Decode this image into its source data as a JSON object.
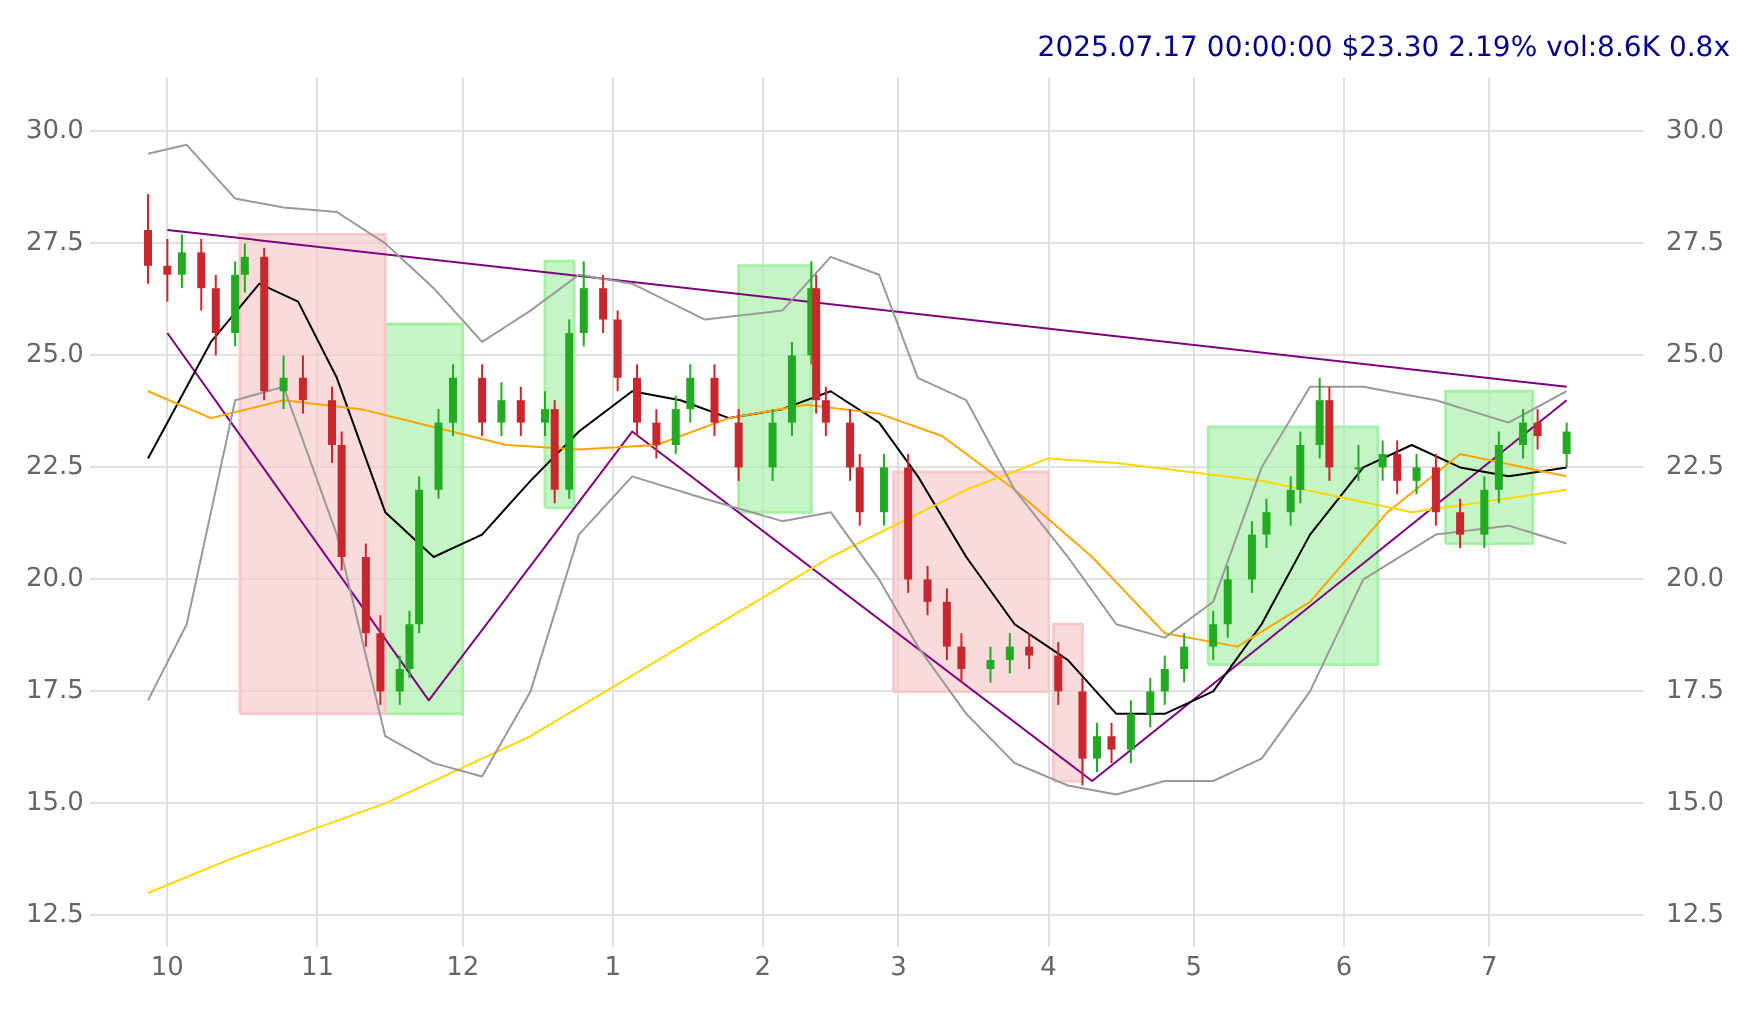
{
  "chart_data": {
    "type": "candlestick",
    "title": "2025.07.17 00:00:00 $23.30 2.19% vol:8.6K 0.8x",
    "x": [
      "2024-09-27",
      "2024-10-01",
      "2024-10-04",
      "2024-10-08",
      "2024-10-11",
      "2024-10-15",
      "2024-10-17",
      "2024-10-21",
      "2024-10-25",
      "2024-10-29",
      "2024-11-04",
      "2024-11-06",
      "2024-11-11",
      "2024-11-14",
      "2024-11-18",
      "2024-11-20",
      "2024-11-22",
      "2024-11-26",
      "2024-11-29",
      "2024-12-05",
      "2024-12-09",
      "2024-12-13",
      "2024-12-18",
      "2024-12-20",
      "2024-12-23",
      "2024-12-26",
      "2024-12-30",
      "2025-01-02",
      "2025-01-06",
      "2025-01-10",
      "2025-01-14",
      "2025-01-17",
      "2025-01-22",
      "2025-01-27",
      "2025-02-03",
      "2025-02-07",
      "2025-02-11",
      "2025-02-12",
      "2025-02-14",
      "2025-02-19",
      "2025-02-21",
      "2025-02-26",
      "2025-03-03",
      "2025-03-07",
      "2025-03-11",
      "2025-03-14",
      "2025-03-20",
      "2025-03-24",
      "2025-03-28",
      "2025-04-03",
      "2025-04-08",
      "2025-04-11",
      "2025-04-14",
      "2025-04-18",
      "2025-04-22",
      "2025-04-25",
      "2025-04-29",
      "2025-05-05",
      "2025-05-08",
      "2025-05-13",
      "2025-05-16",
      "2025-05-21",
      "2025-05-23",
      "2025-05-27",
      "2025-05-29",
      "2025-06-04",
      "2025-06-09",
      "2025-06-12",
      "2025-06-16",
      "2025-06-20",
      "2025-06-25",
      "2025-06-30",
      "2025-07-03",
      "2025-07-08",
      "2025-07-11",
      "2025-07-17"
    ],
    "ohlc": [
      [
        27.8,
        28.6,
        26.6,
        27.0
      ],
      [
        27.0,
        27.6,
        26.2,
        26.8
      ],
      [
        26.8,
        27.7,
        26.5,
        27.3
      ],
      [
        27.3,
        27.6,
        26.0,
        26.5
      ],
      [
        26.5,
        26.8,
        25.0,
        25.5
      ],
      [
        25.5,
        27.1,
        25.2,
        26.8
      ],
      [
        26.8,
        27.5,
        26.4,
        27.2
      ],
      [
        27.2,
        27.4,
        24.0,
        24.2
      ],
      [
        24.2,
        25.0,
        23.8,
        24.5
      ],
      [
        24.5,
        25.0,
        23.7,
        24.0
      ],
      [
        24.0,
        24.3,
        22.6,
        23.0
      ],
      [
        23.0,
        23.3,
        20.2,
        20.5
      ],
      [
        20.5,
        20.8,
        18.5,
        18.8
      ],
      [
        18.8,
        19.2,
        17.2,
        17.5
      ],
      [
        17.5,
        18.3,
        17.2,
        18.0
      ],
      [
        18.0,
        19.3,
        17.8,
        19.0
      ],
      [
        19.0,
        22.3,
        18.8,
        22.0
      ],
      [
        22.0,
        23.8,
        21.8,
        23.5
      ],
      [
        23.5,
        24.8,
        23.2,
        24.5
      ],
      [
        24.5,
        24.8,
        23.2,
        23.5
      ],
      [
        23.5,
        24.4,
        23.2,
        24.0
      ],
      [
        24.0,
        24.3,
        23.2,
        23.5
      ],
      [
        23.5,
        24.2,
        23.2,
        23.8
      ],
      [
        23.8,
        24.0,
        21.7,
        22.0
      ],
      [
        22.0,
        25.8,
        21.8,
        25.5
      ],
      [
        25.5,
        27.1,
        25.2,
        26.5
      ],
      [
        26.5,
        26.8,
        25.5,
        25.8
      ],
      [
        25.8,
        26.0,
        24.2,
        24.5
      ],
      [
        24.5,
        24.8,
        23.2,
        23.5
      ],
      [
        23.5,
        23.8,
        22.7,
        23.0
      ],
      [
        23.0,
        24.1,
        22.8,
        23.8
      ],
      [
        23.8,
        24.8,
        23.5,
        24.5
      ],
      [
        24.5,
        24.8,
        23.2,
        23.5
      ],
      [
        23.5,
        23.8,
        22.2,
        22.5
      ],
      [
        22.5,
        23.8,
        22.2,
        23.5
      ],
      [
        23.5,
        25.3,
        23.2,
        25.0
      ],
      [
        25.0,
        27.1,
        24.8,
        26.5
      ],
      [
        26.5,
        26.8,
        23.7,
        24.0
      ],
      [
        24.0,
        24.3,
        23.2,
        23.5
      ],
      [
        23.5,
        23.8,
        22.2,
        22.5
      ],
      [
        22.5,
        22.8,
        21.2,
        21.5
      ],
      [
        21.5,
        22.8,
        21.2,
        22.5
      ],
      [
        22.5,
        22.8,
        19.7,
        20.0
      ],
      [
        20.0,
        20.3,
        19.2,
        19.5
      ],
      [
        19.5,
        19.8,
        18.2,
        18.5
      ],
      [
        18.5,
        18.8,
        17.7,
        18.0
      ],
      [
        18.0,
        18.5,
        17.7,
        18.2
      ],
      [
        18.2,
        18.8,
        17.9,
        18.5
      ],
      [
        18.5,
        18.8,
        18.0,
        18.3
      ],
      [
        18.3,
        18.6,
        17.2,
        17.5
      ],
      [
        17.5,
        17.8,
        15.4,
        16.0
      ],
      [
        16.0,
        16.8,
        15.7,
        16.5
      ],
      [
        16.5,
        16.8,
        15.9,
        16.2
      ],
      [
        16.2,
        17.3,
        15.9,
        17.0
      ],
      [
        17.0,
        17.8,
        16.7,
        17.5
      ],
      [
        17.5,
        18.3,
        17.2,
        18.0
      ],
      [
        18.0,
        18.8,
        17.7,
        18.5
      ],
      [
        18.5,
        19.3,
        18.2,
        19.0
      ],
      [
        19.0,
        20.3,
        18.7,
        20.0
      ],
      [
        20.0,
        21.3,
        19.7,
        21.0
      ],
      [
        21.0,
        21.8,
        20.7,
        21.5
      ],
      [
        21.5,
        22.3,
        21.2,
        22.0
      ],
      [
        22.0,
        23.3,
        21.7,
        23.0
      ],
      [
        23.0,
        24.5,
        22.7,
        24.0
      ],
      [
        24.0,
        24.3,
        22.2,
        22.5
      ],
      [
        22.5,
        23.0,
        22.2,
        22.5
      ],
      [
        22.5,
        23.1,
        22.2,
        22.8
      ],
      [
        22.8,
        23.1,
        21.9,
        22.2
      ],
      [
        22.2,
        22.8,
        21.9,
        22.5
      ],
      [
        22.5,
        22.8,
        21.2,
        21.5
      ],
      [
        21.5,
        21.8,
        20.7,
        21.0
      ],
      [
        21.0,
        22.3,
        20.7,
        22.0
      ],
      [
        22.0,
        23.3,
        21.7,
        23.0
      ],
      [
        23.0,
        23.8,
        22.7,
        23.5
      ],
      [
        23.5,
        23.8,
        22.9,
        23.2
      ],
      [
        22.8,
        23.5,
        22.5,
        23.3
      ]
    ],
    "series": [
      {
        "type": "area",
        "color": "#f7c9c9",
        "x": [
          "2024-10-16",
          "2024-10-16",
          "2024-11-15",
          "2024-11-15",
          "2024-10-16"
        ],
        "values": [
          17.0,
          27.7,
          27.7,
          17.0,
          17.0
        ]
      },
      {
        "type": "area",
        "color": "#a8f0a8",
        "x": [
          "2024-11-15",
          "2024-11-15",
          "2024-12-01",
          "2024-12-01",
          "2024-11-15"
        ],
        "values": [
          17.0,
          25.7,
          25.7,
          17.0,
          17.0
        ]
      },
      {
        "type": "area",
        "color": "#a8f0a8",
        "x": [
          "2024-12-18",
          "2024-12-18",
          "2024-12-24",
          "2024-12-24",
          "2024-12-18"
        ],
        "values": [
          21.6,
          27.1,
          27.1,
          21.6,
          21.6
        ]
      },
      {
        "type": "area",
        "color": "#a8f0a8",
        "x": [
          "2025-01-27",
          "2025-01-27",
          "2025-02-11",
          "2025-02-11",
          "2025-01-27"
        ],
        "values": [
          21.5,
          27.0,
          27.0,
          21.5,
          21.5
        ]
      },
      {
        "type": "area",
        "color": "#f7c9c9",
        "x": [
          "2025-02-28",
          "2025-02-28",
          "2025-04-01",
          "2025-04-01",
          "2025-02-28"
        ],
        "values": [
          17.5,
          22.4,
          22.4,
          17.5,
          17.5
        ]
      },
      {
        "type": "area",
        "color": "#f7c9c9",
        "x": [
          "2025-04-02",
          "2025-04-02",
          "2025-04-08",
          "2025-04-08",
          "2025-04-02"
        ],
        "values": [
          15.5,
          19.0,
          19.0,
          15.5,
          15.5
        ]
      },
      {
        "type": "area",
        "color": "#a8f0a8",
        "x": [
          "2025-05-04",
          "2025-05-04",
          "2025-06-08",
          "2025-06-08",
          "2025-05-04"
        ],
        "values": [
          18.1,
          23.4,
          23.4,
          18.1,
          18.1
        ]
      },
      {
        "type": "area",
        "color": "#a8f0a8",
        "x": [
          "2025-06-22",
          "2025-06-22",
          "2025-07-10",
          "2025-07-10",
          "2025-06-22"
        ],
        "values": [
          20.8,
          24.2,
          24.2,
          20.8,
          20.8
        ]
      },
      {
        "type": "line",
        "color": "#999999",
        "x": [
          "2024-09-27",
          "2024-10-05",
          "2024-10-15",
          "2024-10-25",
          "2024-11-05",
          "2024-11-15",
          "2024-11-25",
          "2024-12-05",
          "2024-12-15",
          "2024-12-25",
          "2025-01-05",
          "2025-01-20",
          "2025-02-05",
          "2025-02-15",
          "2025-02-25",
          "2025-03-05",
          "2025-03-15",
          "2025-03-25",
          "2025-04-05",
          "2025-04-15",
          "2025-04-25",
          "2025-05-05",
          "2025-05-15",
          "2025-05-25",
          "2025-06-05",
          "2025-06-20",
          "2025-07-05",
          "2025-07-17"
        ],
        "values": [
          29.5,
          29.7,
          28.5,
          28.3,
          28.2,
          27.5,
          26.5,
          25.3,
          26.0,
          26.8,
          26.6,
          25.8,
          26.0,
          27.2,
          26.8,
          24.5,
          24.0,
          22.0,
          20.5,
          19.0,
          18.7,
          19.5,
          22.5,
          24.3,
          24.3,
          24.0,
          23.5,
          24.2
        ]
      },
      {
        "type": "line",
        "color": "#999999",
        "x": [
          "2024-09-27",
          "2024-10-05",
          "2024-10-15",
          "2024-10-25",
          "2024-11-05",
          "2024-11-15",
          "2024-11-25",
          "2024-12-05",
          "2024-12-15",
          "2024-12-25",
          "2025-01-05",
          "2025-01-20",
          "2025-02-05",
          "2025-02-15",
          "2025-02-25",
          "2025-03-05",
          "2025-03-15",
          "2025-03-25",
          "2025-04-05",
          "2025-04-15",
          "2025-04-25",
          "2025-05-05",
          "2025-05-15",
          "2025-05-25",
          "2025-06-05",
          "2025-06-20",
          "2025-07-05",
          "2025-07-17"
        ],
        "values": [
          17.3,
          19.0,
          24.0,
          24.3,
          21.0,
          16.5,
          15.9,
          15.6,
          17.5,
          21.0,
          22.3,
          21.8,
          21.3,
          21.5,
          20.0,
          18.5,
          17.0,
          15.9,
          15.4,
          15.2,
          15.5,
          15.5,
          16.0,
          17.5,
          20.0,
          21.0,
          21.2,
          20.8
        ]
      },
      {
        "type": "line",
        "color": "#ffd700",
        "x": [
          "2024-09-27",
          "2024-10-15",
          "2024-11-15",
          "2024-12-15",
          "2025-01-15",
          "2025-02-15",
          "2025-03-15",
          "2025-04-01",
          "2025-04-15",
          "2025-05-15",
          "2025-06-15",
          "2025-07-17"
        ],
        "values": [
          13.0,
          13.8,
          15.0,
          16.5,
          18.5,
          20.5,
          22.0,
          22.7,
          22.6,
          22.2,
          21.5,
          22.0
        ]
      },
      {
        "type": "line",
        "color": "#ffa500",
        "x": [
          "2024-09-27",
          "2024-10-10",
          "2024-10-25",
          "2024-11-10",
          "2024-11-25",
          "2024-12-10",
          "2024-12-25",
          "2025-01-10",
          "2025-01-25",
          "2025-02-10",
          "2025-02-25",
          "2025-03-10",
          "2025-03-25",
          "2025-04-10",
          "2025-04-25",
          "2025-05-10",
          "2025-05-25",
          "2025-06-10",
          "2025-06-25",
          "2025-07-17"
        ],
        "values": [
          24.2,
          23.6,
          24.0,
          23.8,
          23.4,
          23.0,
          22.9,
          23.0,
          23.6,
          23.9,
          23.7,
          23.2,
          22.0,
          20.5,
          18.8,
          18.5,
          19.5,
          21.5,
          22.8,
          22.3
        ]
      },
      {
        "type": "line",
        "color": "#000000",
        "x": [
          "2024-09-27",
          "2024-10-10",
          "2024-10-20",
          "2024-10-28",
          "2024-11-05",
          "2024-11-15",
          "2024-11-25",
          "2024-12-05",
          "2024-12-15",
          "2024-12-25",
          "2025-01-05",
          "2025-01-15",
          "2025-01-25",
          "2025-02-05",
          "2025-02-15",
          "2025-02-25",
          "2025-03-05",
          "2025-03-15",
          "2025-03-25",
          "2025-04-05",
          "2025-04-15",
          "2025-04-25",
          "2025-05-05",
          "2025-05-15",
          "2025-05-25",
          "2025-06-05",
          "2025-06-15",
          "2025-06-25",
          "2025-07-05",
          "2025-07-17"
        ],
        "values": [
          22.7,
          25.3,
          26.6,
          26.2,
          24.5,
          21.5,
          20.5,
          21.0,
          22.2,
          23.3,
          24.2,
          24.0,
          23.6,
          23.8,
          24.2,
          23.5,
          22.3,
          20.5,
          19.0,
          18.2,
          17.0,
          17.0,
          17.5,
          19.0,
          21.0,
          22.5,
          23.0,
          22.5,
          22.3,
          22.5
        ]
      },
      {
        "type": "line",
        "color": "#800080",
        "x": [
          "2024-10-01",
          "2025-07-17"
        ],
        "values": [
          27.8,
          24.3
        ]
      },
      {
        "type": "line",
        "color": "#800080",
        "x": [
          "2024-10-01",
          "2024-11-24",
          "2025-01-05",
          "2025-04-10",
          "2025-07-17"
        ],
        "values": [
          25.5,
          17.3,
          23.3,
          15.5,
          24.0
        ]
      }
    ],
    "xlim": [
      "2024-09-15",
      "2025-08-02"
    ],
    "xticks": [
      {
        "value": "2024-10-01",
        "label": "10"
      },
      {
        "value": "2024-11-01",
        "label": "11"
      },
      {
        "value": "2024-12-01",
        "label": "12"
      },
      {
        "value": "2025-01-01",
        "label": "1"
      },
      {
        "value": "2025-02-01",
        "label": "2"
      },
      {
        "value": "2025-03-01",
        "label": "3"
      },
      {
        "value": "2025-04-01",
        "label": "4"
      },
      {
        "value": "2025-05-01",
        "label": "5"
      },
      {
        "value": "2025-06-01",
        "label": "6"
      },
      {
        "value": "2025-07-01",
        "label": "7"
      }
    ],
    "ylim": [
      11.8,
      31.2
    ],
    "yticks": [
      {
        "value": 12.5,
        "label": "12.5"
      },
      {
        "value": 15,
        "label": "15.0"
      },
      {
        "value": 17.5,
        "label": "17.5"
      },
      {
        "value": 20,
        "label": "20.0"
      },
      {
        "value": 22.5,
        "label": "22.5"
      },
      {
        "value": 25,
        "label": "25.0"
      },
      {
        "value": 27.5,
        "label": "27.5"
      },
      {
        "value": 30,
        "label": "30.0"
      }
    ],
    "y2lim": [
      11.8,
      31.2
    ],
    "y2ticks": [
      {
        "value": 12.5,
        "label": "12.5"
      },
      {
        "value": 15,
        "label": "15.0"
      },
      {
        "value": 17.5,
        "label": "17.5"
      },
      {
        "value": 20,
        "label": "20.0"
      },
      {
        "value": 22.5,
        "label": "22.5"
      },
      {
        "value": 25,
        "label": "25.0"
      },
      {
        "value": 27.5,
        "label": "27.5"
      },
      {
        "value": 30,
        "label": "30.0"
      }
    ],
    "grid": true,
    "legend": false,
    "marker": "none"
  }
}
